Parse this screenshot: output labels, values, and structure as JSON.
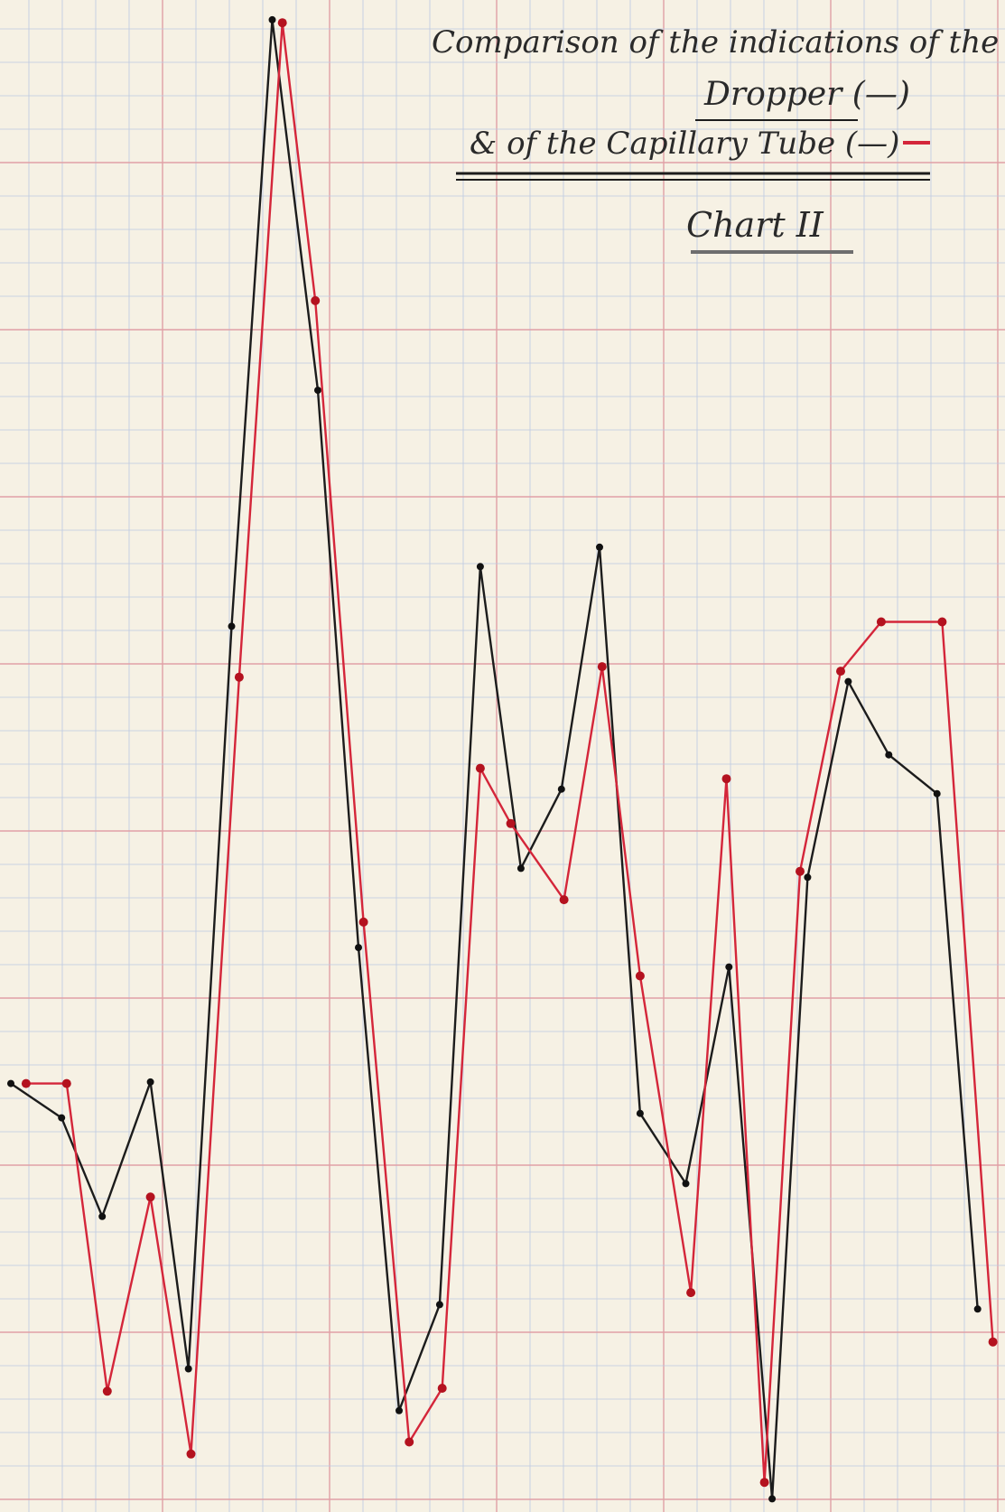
{
  "chart_data": {
    "type": "line",
    "title_lines": [
      "Comparison of the indications of the",
      "Dropper (—)",
      "& of the Capillary Tube (—)"
    ],
    "subtitle": "Chart II",
    "xlabel": "",
    "ylabel": "",
    "x_range": [
      0,
      39
    ],
    "y_range": [
      0,
      100
    ],
    "grid": true,
    "series": [
      {
        "name": "Dropper",
        "color": "#1c1c1c",
        "points": [
          [
            0,
            28.2
          ],
          [
            2,
            25.9
          ],
          [
            3.6,
            19.3
          ],
          [
            5.5,
            28.3
          ],
          [
            7,
            9.1
          ],
          [
            8.7,
            58.8
          ],
          [
            10.3,
            99.4
          ],
          [
            12.1,
            74.6
          ],
          [
            13.7,
            37.3
          ],
          [
            15.3,
            6.3
          ],
          [
            16.9,
            13.4
          ],
          [
            18.5,
            62.8
          ],
          [
            20.1,
            42.6
          ],
          [
            21.7,
            47.9
          ],
          [
            23.2,
            64.1
          ],
          [
            24.8,
            26.2
          ],
          [
            26.6,
            21.5
          ],
          [
            28.3,
            36.0
          ],
          [
            30,
            0.4
          ],
          [
            31.4,
            42.0
          ],
          [
            33,
            55.1
          ],
          [
            34.6,
            50.2
          ],
          [
            36.5,
            47.6
          ],
          [
            38.1,
            13.1
          ]
        ]
      },
      {
        "name": "Capillary Tube",
        "color": "#d4263a",
        "points": [
          [
            0.6,
            28.2
          ],
          [
            2.2,
            28.2
          ],
          [
            3.8,
            7.6
          ],
          [
            5.5,
            20.6
          ],
          [
            7.1,
            3.4
          ],
          [
            9,
            55.4
          ],
          [
            10.7,
            99.2
          ],
          [
            12,
            80.6
          ],
          [
            13.9,
            39.0
          ],
          [
            15.7,
            4.2
          ],
          [
            17,
            7.8
          ],
          [
            18.5,
            49.3
          ],
          [
            19.7,
            45.6
          ],
          [
            21.8,
            40.5
          ],
          [
            23.3,
            56.1
          ],
          [
            24.8,
            35.4
          ],
          [
            26.8,
            14.2
          ],
          [
            28.2,
            48.6
          ],
          [
            29.7,
            1.5
          ],
          [
            31.1,
            42.4
          ],
          [
            32.7,
            55.8
          ],
          [
            34.3,
            59.1
          ],
          [
            36.7,
            59.1
          ],
          [
            38.7,
            10.9
          ]
        ]
      }
    ]
  }
}
